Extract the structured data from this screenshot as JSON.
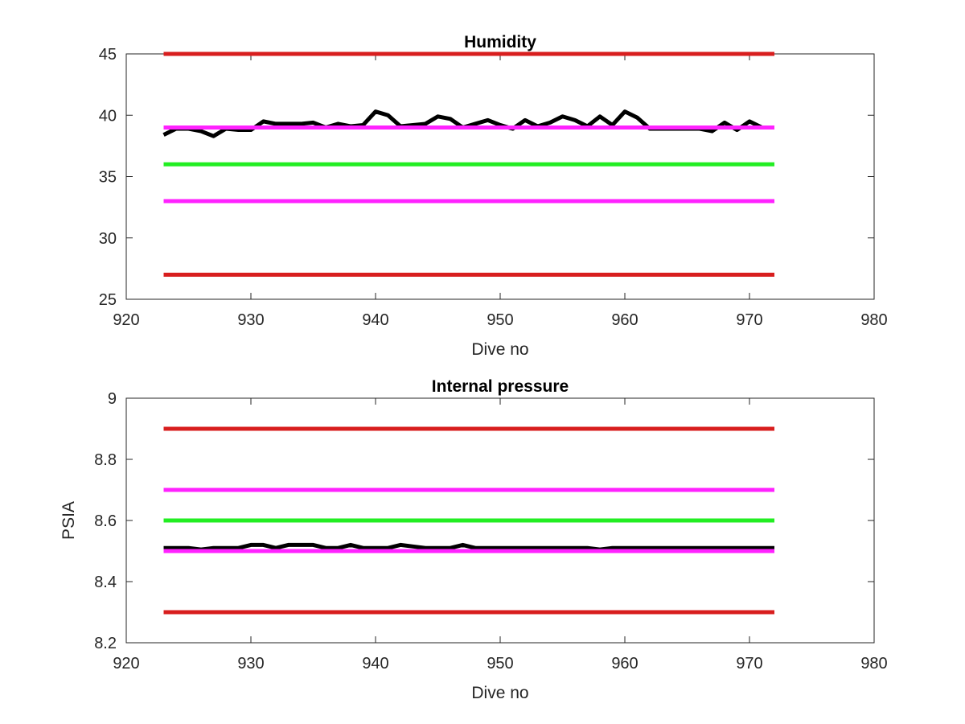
{
  "chart_data": [
    {
      "type": "line",
      "title": "Humidity",
      "xlabel": "Dive no",
      "ylabel": "",
      "xlim": [
        920,
        980
      ],
      "ylim": [
        25,
        45
      ],
      "xticks": [
        920,
        930,
        940,
        950,
        960,
        970,
        980
      ],
      "yticks": [
        25,
        30,
        35,
        40,
        45
      ],
      "xtick_labels": [
        "920",
        "930",
        "940",
        "950",
        "960",
        "970",
        "980"
      ],
      "ytick_labels": [
        "25",
        "30",
        "35",
        "40",
        "45"
      ],
      "grid": false,
      "legend": "none",
      "series": [
        {
          "color": "#d81e1e",
          "x": [
            923,
            972
          ],
          "y": [
            45,
            45
          ]
        },
        {
          "color": "#d81e1e",
          "x": [
            923,
            972
          ],
          "y": [
            27,
            27
          ]
        },
        {
          "color": "#22ee22",
          "x": [
            923,
            972
          ],
          "y": [
            36,
            36
          ]
        },
        {
          "color": "#ff22ff",
          "x": [
            923,
            972
          ],
          "y": [
            33,
            33
          ]
        },
        {
          "color": "#000000",
          "x": [
            923,
            924,
            925,
            926,
            927,
            928,
            929,
            930,
            931,
            932,
            933,
            934,
            935,
            936,
            937,
            938,
            939,
            940,
            941,
            942,
            943,
            944,
            945,
            946,
            947,
            948,
            949,
            950,
            951,
            952,
            953,
            954,
            955,
            956,
            957,
            958,
            959,
            960,
            961,
            962,
            963,
            964,
            965,
            966,
            967,
            968,
            969,
            970,
            971,
            972
          ],
          "y": [
            38.4,
            38.9,
            38.9,
            38.7,
            38.3,
            38.9,
            38.8,
            38.8,
            39.5,
            39.3,
            39.3,
            39.3,
            39.4,
            39.0,
            39.3,
            39.1,
            39.2,
            40.3,
            40.0,
            39.1,
            39.2,
            39.3,
            39.9,
            39.7,
            39.0,
            39.3,
            39.6,
            39.2,
            38.9,
            39.6,
            39.1,
            39.4,
            39.9,
            39.6,
            39.1,
            39.9,
            39.2,
            40.3,
            39.8,
            38.9,
            38.9,
            38.9,
            38.9,
            38.9,
            38.7,
            39.4,
            38.8,
            39.5,
            39.0,
            39.0
          ]
        },
        {
          "color": "#ff22ff",
          "x": [
            923,
            972
          ],
          "y": [
            39,
            39
          ]
        }
      ]
    },
    {
      "type": "line",
      "title": "Internal pressure",
      "xlabel": "Dive no",
      "ylabel": "PSIA",
      "xlim": [
        920,
        980
      ],
      "ylim": [
        8.2,
        9.0
      ],
      "xticks": [
        920,
        930,
        940,
        950,
        960,
        970,
        980
      ],
      "yticks": [
        8.2,
        8.4,
        8.6,
        8.8,
        9.0
      ],
      "xtick_labels": [
        "920",
        "930",
        "940",
        "950",
        "960",
        "970",
        "980"
      ],
      "ytick_labels": [
        "8.2",
        "8.4",
        "8.6",
        "8.8",
        "9"
      ],
      "grid": false,
      "legend": "none",
      "series": [
        {
          "color": "#d81e1e",
          "x": [
            923,
            972
          ],
          "y": [
            8.9,
            8.9
          ]
        },
        {
          "color": "#d81e1e",
          "x": [
            923,
            972
          ],
          "y": [
            8.3,
            8.3
          ]
        },
        {
          "color": "#ff22ff",
          "x": [
            923,
            972
          ],
          "y": [
            8.7,
            8.7
          ]
        },
        {
          "color": "#22ee22",
          "x": [
            923,
            972
          ],
          "y": [
            8.6,
            8.6
          ]
        },
        {
          "color": "#000000",
          "x": [
            923,
            924,
            925,
            926,
            927,
            928,
            929,
            930,
            931,
            932,
            933,
            934,
            935,
            936,
            937,
            938,
            939,
            940,
            941,
            942,
            943,
            944,
            945,
            946,
            947,
            948,
            949,
            950,
            951,
            952,
            953,
            954,
            955,
            956,
            957,
            958,
            959,
            960,
            961,
            962,
            963,
            964,
            965,
            966,
            967,
            968,
            969,
            970,
            971,
            972
          ],
          "y": [
            8.51,
            8.51,
            8.51,
            8.505,
            8.51,
            8.51,
            8.51,
            8.52,
            8.52,
            8.51,
            8.52,
            8.52,
            8.52,
            8.51,
            8.51,
            8.52,
            8.51,
            8.51,
            8.51,
            8.52,
            8.515,
            8.51,
            8.51,
            8.51,
            8.52,
            8.51,
            8.51,
            8.51,
            8.51,
            8.51,
            8.51,
            8.51,
            8.51,
            8.51,
            8.51,
            8.505,
            8.51,
            8.51,
            8.51,
            8.51,
            8.51,
            8.51,
            8.51,
            8.51,
            8.51,
            8.51,
            8.51,
            8.51,
            8.51,
            8.51
          ]
        },
        {
          "color": "#ff22ff",
          "x": [
            923,
            972
          ],
          "y": [
            8.5,
            8.5
          ]
        }
      ]
    }
  ]
}
